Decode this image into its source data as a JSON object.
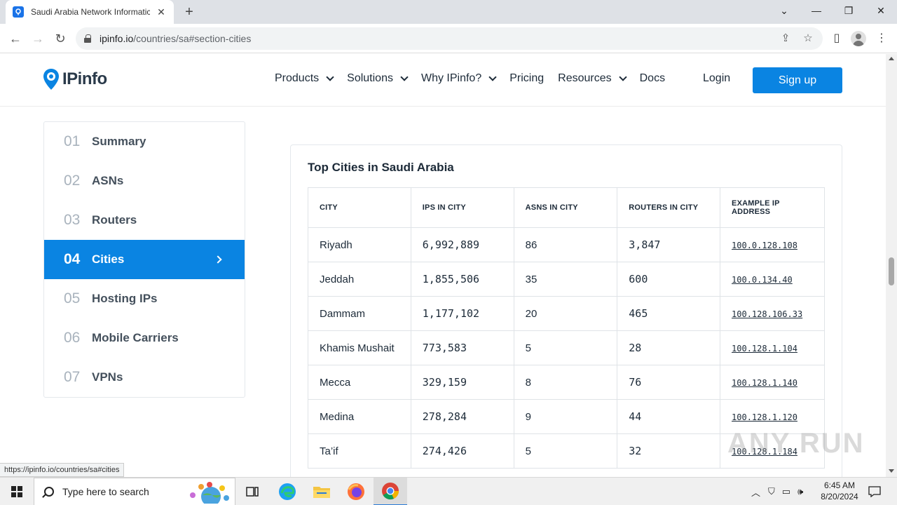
{
  "browser": {
    "tab_title": "Saudi Arabia Network Informatic",
    "url_host": "ipinfo.io",
    "url_path": "/countries/sa#section-cities",
    "status_url": "https://ipinfo.io/countries/sa#cities"
  },
  "header": {
    "logo_text": "IPinfo",
    "nav": [
      {
        "label": "Products",
        "has_dropdown": true
      },
      {
        "label": "Solutions",
        "has_dropdown": true
      },
      {
        "label": "Why IPinfo?",
        "has_dropdown": true
      },
      {
        "label": "Pricing",
        "has_dropdown": false
      },
      {
        "label": "Resources",
        "has_dropdown": true
      },
      {
        "label": "Docs",
        "has_dropdown": false
      }
    ],
    "login": "Login",
    "signup": "Sign up"
  },
  "sidebar": {
    "items": [
      {
        "num": "01",
        "label": "Summary",
        "active": false
      },
      {
        "num": "02",
        "label": "ASNs",
        "active": false
      },
      {
        "num": "03",
        "label": "Routers",
        "active": false
      },
      {
        "num": "04",
        "label": "Cities",
        "active": true
      },
      {
        "num": "05",
        "label": "Hosting IPs",
        "active": false
      },
      {
        "num": "06",
        "label": "Mobile Carriers",
        "active": false
      },
      {
        "num": "07",
        "label": "VPNs",
        "active": false
      }
    ]
  },
  "cities_section": {
    "title": "Top Cities in Saudi Arabia",
    "columns": [
      "CITY",
      "IPS IN CITY",
      "ASNS IN CITY",
      "ROUTERS IN CITY",
      "EXAMPLE IP ADDRESS"
    ],
    "rows": [
      [
        "Riyadh",
        "6,992,889",
        "86",
        "3,847",
        "100.0.128.108"
      ],
      [
        "Jeddah",
        "1,855,506",
        "35",
        "600",
        "100.0.134.40"
      ],
      [
        "Dammam",
        "1,177,102",
        "20",
        "465",
        "100.128.106.33"
      ],
      [
        "Khamis Mushait",
        "773,583",
        "5",
        "28",
        "100.128.1.104"
      ],
      [
        "Mecca",
        "329,159",
        "8",
        "76",
        "100.128.1.140"
      ],
      [
        "Medina",
        "278,284",
        "9",
        "44",
        "100.128.1.120"
      ],
      [
        "Ta’if",
        "274,426",
        "5",
        "32",
        "100.128.1.184"
      ]
    ]
  },
  "watermark": "ANY RUN",
  "taskbar": {
    "search_placeholder": "Type here to search",
    "time": "6:45 AM",
    "date": "8/20/2024"
  },
  "colors": {
    "accent": "#0a84e2",
    "tabbar": "#dee1e6"
  }
}
